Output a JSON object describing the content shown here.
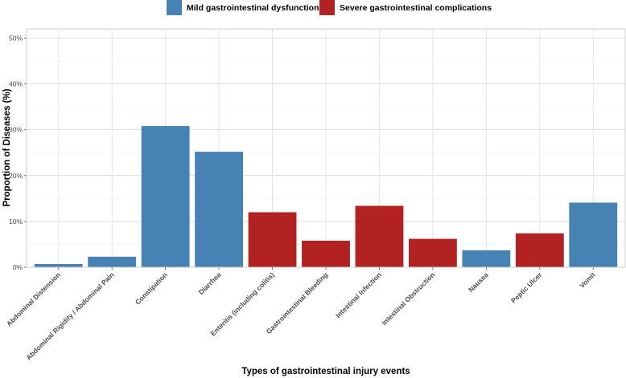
{
  "chart_data": {
    "type": "bar",
    "title": "",
    "xlabel": "Types of gastrointestinal injury events",
    "ylabel": "Proportion of Diseases (%)",
    "ylim": [
      0,
      52
    ],
    "yticks": [
      0,
      10,
      20,
      30,
      40,
      50
    ],
    "ytick_labels": [
      "0%",
      "10%",
      "20%",
      "30%",
      "40%",
      "50%"
    ],
    "grid": true,
    "legend_position": "top",
    "series": [
      {
        "name": "Mild gastrointestinal dysfunction",
        "color": "#4682B4"
      },
      {
        "name": "Severe gastrointestinal complications",
        "color": "#B22222"
      }
    ],
    "categories": [
      "Abdominal  Distension",
      "Abdominal Rigidity  /  Abdominal Pain",
      "Constipation",
      "Diarrhea",
      "Enteritis (including colitis)",
      "Gastrointestinal  Bleeding",
      "Intestinal  Infection",
      "Intestinal  Obstruction",
      "Nausea",
      "Peptic  Ulcer",
      "Vomit"
    ],
    "values": [
      0.7,
      2.3,
      30.8,
      25.2,
      12.0,
      5.8,
      13.4,
      6.2,
      3.7,
      7.4,
      14.1
    ],
    "bar_series": [
      0,
      0,
      0,
      0,
      1,
      1,
      1,
      1,
      0,
      1,
      0
    ]
  }
}
